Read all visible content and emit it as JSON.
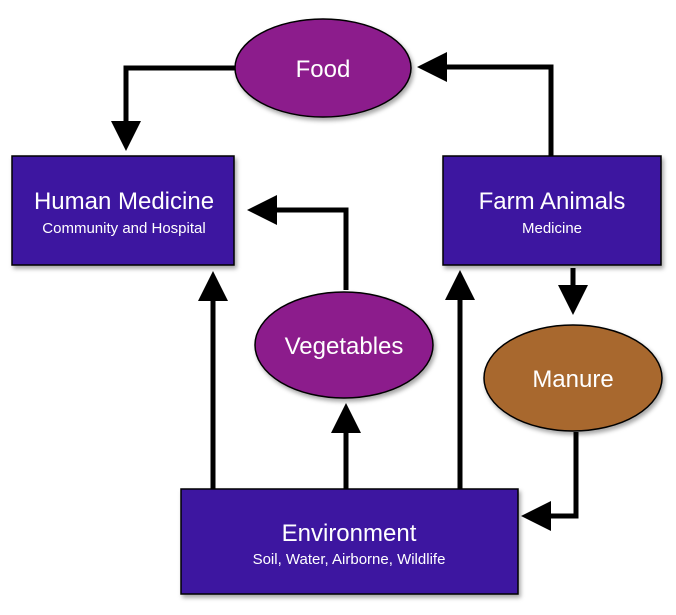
{
  "colors": {
    "box": "#3c14a0",
    "food": "#8c1e8c",
    "vegetables": "#8c1e8c",
    "manure": "#a8672f",
    "arrow": "#000000"
  },
  "nodes": {
    "food": {
      "label": "Food"
    },
    "human_medicine": {
      "title": "Human Medicine",
      "subtitle": "Community and Hospital"
    },
    "farm_animals": {
      "title": "Farm Animals",
      "subtitle": "Medicine"
    },
    "vegetables": {
      "label": "Vegetables"
    },
    "manure": {
      "label": "Manure"
    },
    "environment": {
      "title": "Environment",
      "subtitle": "Soil, Water, Airborne, Wildlife"
    }
  }
}
